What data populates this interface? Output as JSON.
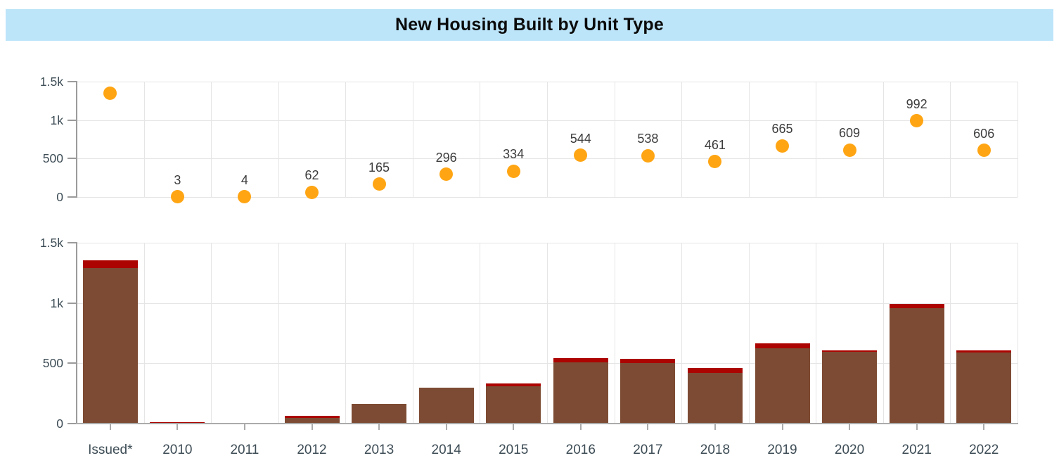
{
  "title": {
    "text": "New Housing Built by Unit Type"
  },
  "colors": {
    "title_bg": "#BDE5FA",
    "title_text": "#0B0B0B",
    "point_orange": "#FFA513",
    "bar_brown": "#7D4B33",
    "bar_dark_red": "#AC0400",
    "gridline": "#E5E5E5",
    "y_axis_line": "#9B9B9B",
    "x_axis_line": "#ABABAB",
    "axis_label": "#3D4C55",
    "point_label": "#3C3C3C"
  },
  "chart_data": {
    "type": "combo",
    "layout": "two stacked panels sharing one x-axis: top panel scatter points, bottom panel stacked bars",
    "categories": [
      "Issued*",
      "2010",
      "2011",
      "2012",
      "2013",
      "2014",
      "2015",
      "2016",
      "2017",
      "2018",
      "2019",
      "2020",
      "2021",
      "2022"
    ],
    "series": [
      {
        "name": "total-units-points",
        "panel": "top",
        "type": "scatter",
        "color": "#FFA513",
        "values": [
          1353,
          3,
          4,
          62,
          165,
          296,
          334,
          544,
          538,
          461,
          665,
          609,
          992,
          606
        ],
        "labels": [
          "",
          "3",
          "4",
          "62",
          "165",
          "296",
          "334",
          "544",
          "538",
          "461",
          "665",
          "609",
          "992",
          "606"
        ]
      },
      {
        "name": "brown-unit-type-bars",
        "panel": "bottom",
        "type": "bar",
        "stack": "units",
        "color": "#7D4B33",
        "values": [
          1290,
          1,
          4,
          47,
          165,
          296,
          311,
          508,
          500,
          423,
          627,
          593,
          960,
          590
        ]
      },
      {
        "name": "dark-red-unit-type-bars",
        "panel": "bottom",
        "type": "bar",
        "stack": "units",
        "color": "#AC0400",
        "values": [
          63,
          2,
          0,
          15,
          0,
          0,
          23,
          36,
          38,
          38,
          38,
          16,
          32,
          16
        ]
      }
    ],
    "y_axis": {
      "tick_labels": [
        "1.5k",
        "1k",
        "500",
        "0"
      ],
      "tick_values": [
        1500,
        1000,
        500,
        0
      ],
      "range": [
        0,
        1500
      ],
      "applies_to": "both panels"
    },
    "x_axis": {
      "tick_labels": [
        "Issued*",
        "2010",
        "2011",
        "2012",
        "2013",
        "2014",
        "2015",
        "2016",
        "2017",
        "2018",
        "2019",
        "2020",
        "2021",
        "2022"
      ]
    },
    "grid": true,
    "legend": "none"
  }
}
